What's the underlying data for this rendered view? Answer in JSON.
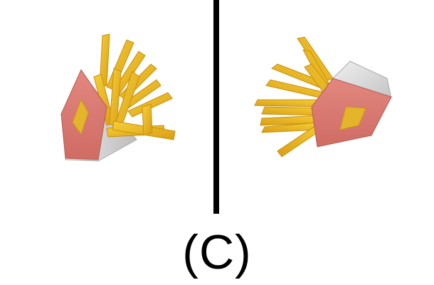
{
  "figure": {
    "caption": "(C)",
    "divider_color": "#000000",
    "left_view": {
      "icon": "french-fries-box-icon",
      "fry_color": "#e8b419",
      "box_face_color": "#dc7a72",
      "box_side_color": "#d6d6d6",
      "emblem_color": "#e4b52a"
    },
    "right_view": {
      "icon": "french-fries-box-icon",
      "fry_color": "#e8b419",
      "box_face_color": "#dc7a72",
      "box_side_color": "#d6d6d6",
      "emblem_color": "#e4b52a"
    }
  }
}
